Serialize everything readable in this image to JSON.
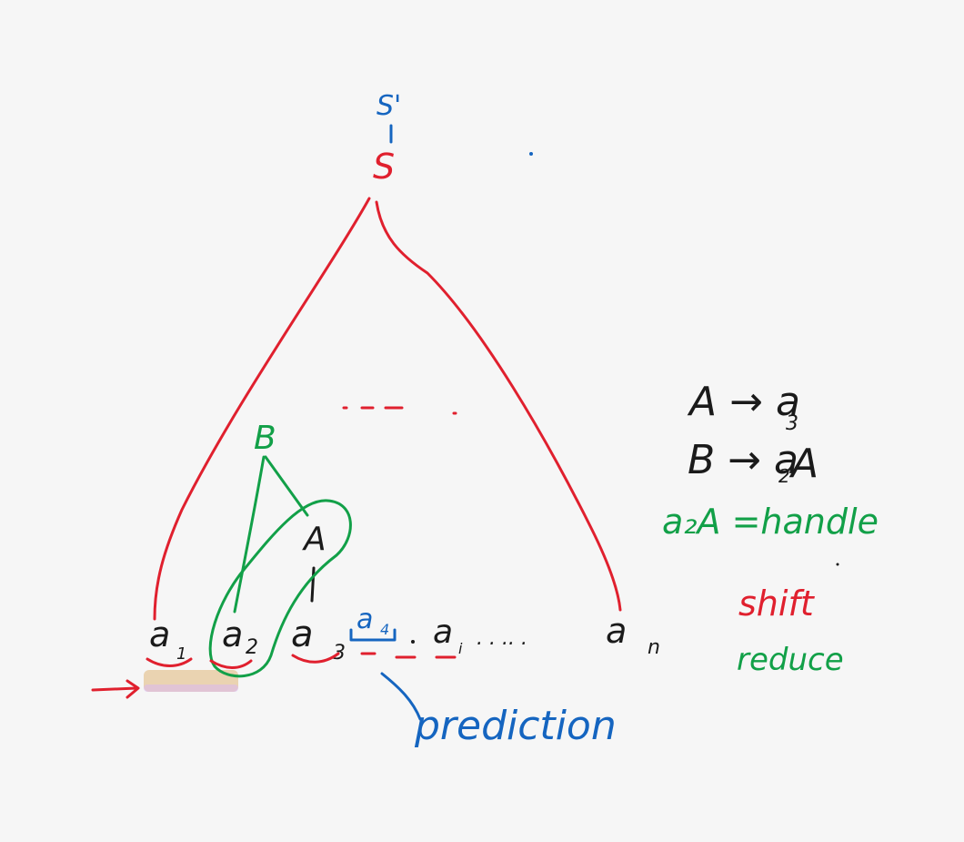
{
  "nodes": {
    "s_prime": "S'",
    "s": "S",
    "b": "B",
    "a": "A"
  },
  "leaves": {
    "a1": "a",
    "a1_sub": "1",
    "a2": "a",
    "a2_sub": "2",
    "a3": "a",
    "a3_sub": "3",
    "a4": "a",
    "a4_sub": "4",
    "ai": "a",
    "ai_sub": "i",
    "an": "a",
    "an_sub": "n",
    "dots": ". . .. ."
  },
  "rules": {
    "rule1": "A → a",
    "rule1_sub": "3",
    "rule2_left": "B → a",
    "rule2_sub": "2",
    "rule2_right": "A",
    "handle": "a₂A =handle"
  },
  "legend": {
    "shift": "shift",
    "reduce": "reduce"
  },
  "prediction": "prediction",
  "colors": {
    "red": "#e0202e",
    "blue": "#1565c0",
    "green": "#12a048",
    "black": "#1a1a1a"
  }
}
